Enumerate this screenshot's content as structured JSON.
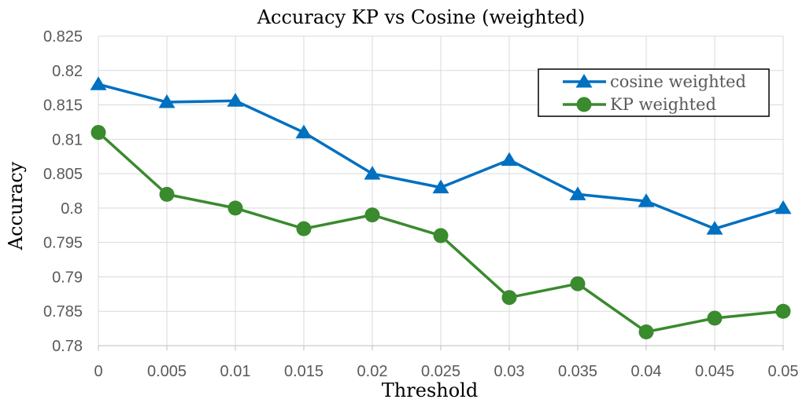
{
  "chart_data": {
    "type": "line",
    "title": "Accuracy KP vs Cosine (weighted)",
    "xlabel": "Threshold",
    "ylabel": "Accuracy",
    "x": [
      0,
      0.005,
      0.01,
      0.015,
      0.02,
      0.025,
      0.03,
      0.035,
      0.04,
      0.045,
      0.05
    ],
    "x_tick_labels": [
      "0",
      "0.005",
      "0.01",
      "0.015",
      "0.02",
      "0.025",
      "0.03",
      "0.035",
      "0.04",
      "0.045",
      "0.05"
    ],
    "y_tick_labels": [
      "0.78",
      "0.785",
      "0.79",
      "0.795",
      "0.8",
      "0.805",
      "0.81",
      "0.815",
      "0.82",
      "0.825"
    ],
    "ylim": [
      0.78,
      0.825
    ],
    "grid": true,
    "legend_position": "top-right",
    "series": [
      {
        "name": "cosine weighted",
        "color": "#0070c0",
        "marker": "triangle",
        "values": [
          0.818,
          0.8154,
          0.8156,
          0.811,
          0.805,
          0.803,
          0.807,
          0.802,
          0.801,
          0.797,
          0.8
        ]
      },
      {
        "name": "KP weighted",
        "color": "#3a8a2e",
        "marker": "circle",
        "values": [
          0.811,
          0.802,
          0.8,
          0.797,
          0.799,
          0.796,
          0.787,
          0.789,
          0.782,
          0.784,
          0.785
        ]
      }
    ]
  }
}
